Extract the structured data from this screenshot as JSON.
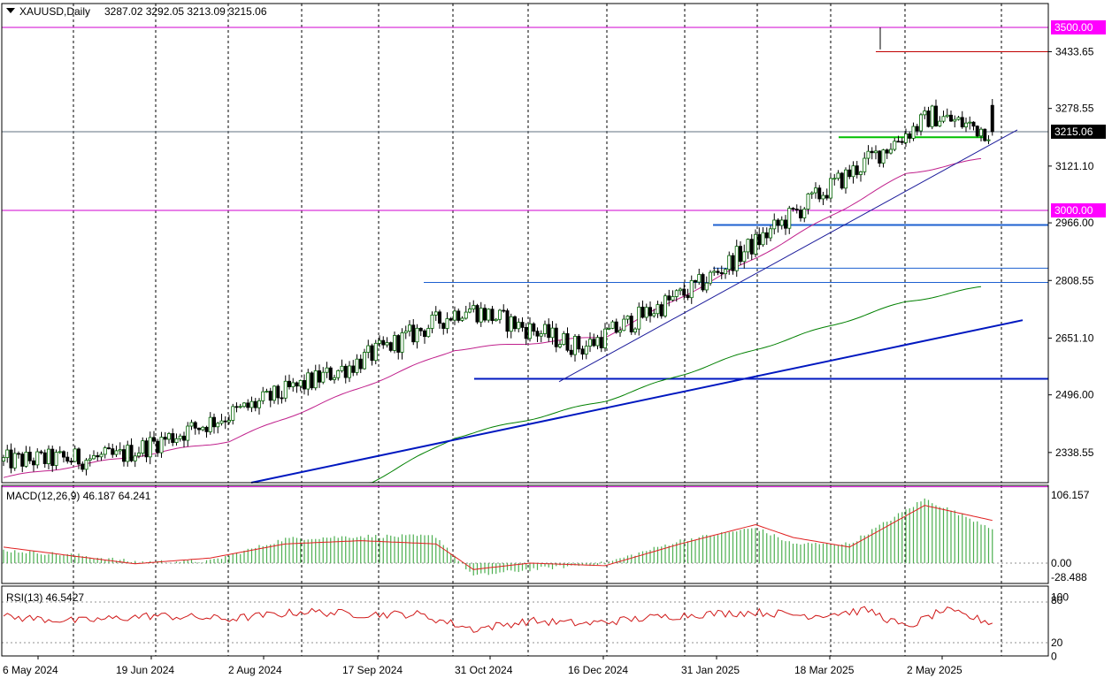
{
  "header": {
    "symbol_line": "XAUUSD,Daily",
    "ohlc": "3287.02 3292.05 3213.09 3215.06"
  },
  "macd": {
    "label": "MACD(12,26,9) 46.187 64.241",
    "max_label": "106.157",
    "zero_label": "0.00",
    "min_label": "-28.488"
  },
  "rsi": {
    "label": "RSI(13) 46.5427",
    "levels": [
      "100",
      "80",
      "20",
      "0"
    ]
  },
  "colors": {
    "bull": "#006400",
    "bear": "#000000",
    "level_magenta": "#d000d0",
    "support_blue": "#1e60d0",
    "trend_blue": "#0018c0",
    "ma50": "#c0208c",
    "ma200": "#008000",
    "macd_hist": "#4caf50",
    "macd_signal": "#e02020",
    "rsi_line": "#d01818",
    "green_level": "#00c000"
  },
  "price_levels": {
    "resistance_label": "3500.00",
    "support_label": "3000.00",
    "last_price_label": "3215.06"
  },
  "chart_data": [
    {
      "type": "candlestick",
      "title": "XAUUSD,Daily",
      "y_ticks": [
        3433.65,
        3278.55,
        3121.1,
        2966.0,
        2808.55,
        2651.1,
        2496.0,
        2338.55
      ],
      "x_ticks": [
        "6 May 2024",
        "19 Jun 2024",
        "2 Aug 2024",
        "17 Sep 2024",
        "31 Oct 2024",
        "16 Dec 2024",
        "31 Jan 2025",
        "18 Mar 2025",
        "2 May 2025"
      ],
      "ylim": [
        2220,
        3500
      ],
      "grid": true,
      "anchors": {
        "x": [
          0,
          31,
          62,
          93,
          124,
          155,
          186,
          217,
          248,
          264
        ],
        "close": [
          2315,
          2325,
          2445,
          2575,
          2735,
          2625,
          2795,
          3035,
          3260,
          3215
        ]
      },
      "last_ohlc": {
        "open": 3287.02,
        "high": 3292.05,
        "low": 3213.09,
        "close": 3215.06
      },
      "horizontal_levels": [
        3500.0,
        3433.65,
        3215.06,
        3200.0,
        3000.0,
        2960.0,
        2842.0,
        2803.0,
        2540.0
      ],
      "trendlines": [
        {
          "from": [
            0,
            2180
          ],
          "to": [
            274,
            2700
          ]
        },
        {
          "from": [
            142,
            2540
          ],
          "to": [
            274,
            3220
          ]
        }
      ],
      "moving_averages": [
        {
          "name": "",
          "anchors": [
            [
              0,
              2270
            ],
            [
              60,
              2370
            ],
            [
              120,
              2620
            ],
            [
              160,
              2655
            ],
            [
              200,
              2870
            ],
            [
              240,
              3100
            ],
            [
              260,
              3140
            ]
          ]
        },
        {
          "name": "",
          "anchors": [
            [
              80,
              2160
            ],
            [
              120,
              2380
            ],
            [
              160,
              2480
            ],
            [
              200,
              2620
            ],
            [
              240,
              2750
            ],
            [
              260,
              2790
            ]
          ]
        }
      ]
    },
    {
      "type": "bar",
      "title": "MACD(12,26,9) 46.187 64.241",
      "ylim": [
        -28.488,
        106.157
      ],
      "histogram_anchors": {
        "x": [
          0,
          20,
          35,
          55,
          75,
          95,
          115,
          125,
          140,
          160,
          180,
          200,
          210,
          225,
          245,
          265
        ],
        "y": [
          20,
          12,
          2,
          3,
          38,
          42,
          42,
          -20,
          -10,
          0,
          35,
          55,
          30,
          30,
          100,
          50
        ]
      },
      "signal_anchors": {
        "x": [
          0,
          20,
          35,
          55,
          75,
          95,
          115,
          125,
          140,
          160,
          180,
          200,
          210,
          225,
          245,
          265
        ],
        "y": [
          25,
          10,
          -1,
          8,
          30,
          35,
          30,
          -10,
          0,
          -4,
          30,
          60,
          40,
          25,
          90,
          64
        ]
      }
    },
    {
      "type": "line",
      "title": "RSI(13) 46.5427",
      "ylim": [
        0,
        100
      ],
      "levels": [
        80,
        20
      ],
      "anchors": {
        "x": [
          0,
          20,
          40,
          60,
          80,
          95,
          110,
          125,
          140,
          155,
          170,
          185,
          200,
          215,
          230,
          240,
          250,
          265
        ],
        "y": [
          58,
          52,
          60,
          55,
          66,
          62,
          62,
          40,
          52,
          48,
          56,
          62,
          65,
          60,
          68,
          42,
          68,
          46.5
        ]
      }
    }
  ]
}
